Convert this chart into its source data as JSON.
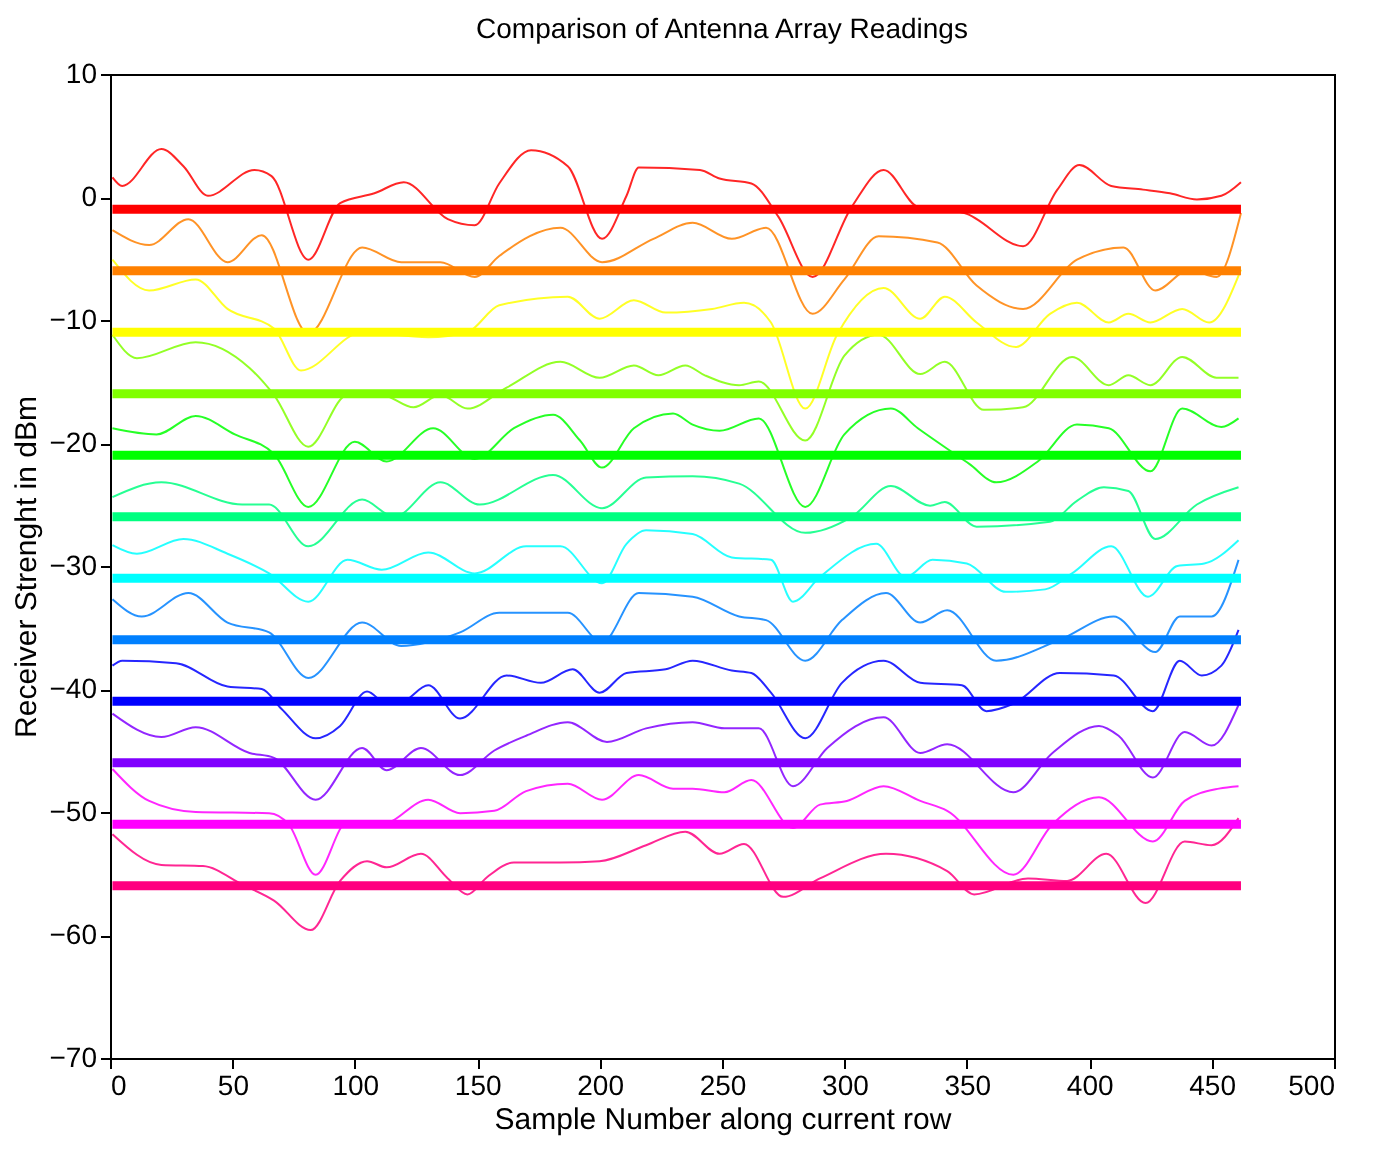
{
  "chart_data": {
    "type": "line",
    "title": "Comparison of Antenna Array Readings",
    "xlabel": "Sample Number along current row",
    "ylabel": "Receiver Strenght in dBm",
    "xlim": [
      0,
      500
    ],
    "xticks": [
      0,
      50,
      100,
      150,
      200,
      250,
      300,
      350,
      400,
      450,
      500
    ],
    "ylim": [
      -70,
      10
    ],
    "yticks": [
      -70,
      -60,
      -50,
      -40,
      -30,
      -20,
      -10,
      0,
      10
    ],
    "grid": false,
    "series": [
      {
        "color": "#ff0000",
        "x": [
          1,
          5,
          21,
          30,
          40,
          59,
          66,
          81,
          94,
          108,
          120,
          138,
          149,
          159,
          172,
          187,
          201,
          211,
          216,
          241,
          249,
          262,
          273,
          287,
          303,
          316,
          330,
          349,
          373,
          387,
          396,
          409,
          422,
          433,
          444,
          454,
          462
        ],
        "values": [
          1.6,
          0.9,
          3.9,
          2.5,
          0.1,
          2.2,
          1.7,
          -5.1,
          -0.5,
          0.3,
          1.2,
          -1.8,
          -2.3,
          1.1,
          3.8,
          2.5,
          -3.4,
          0.1,
          2.4,
          2.2,
          1.5,
          1.1,
          -1.6,
          -6.5,
          -0.8,
          2.2,
          -0.8,
          -1.3,
          -4.0,
          0.6,
          2.6,
          0.9,
          0.6,
          0.3,
          -0.2,
          0.1,
          1.2
        ]
      },
      {
        "color": "#ff8000",
        "x": [
          1,
          16,
          32,
          48,
          62,
          81,
          103,
          119,
          135,
          149,
          159,
          184,
          201,
          222,
          238,
          254,
          268,
          287,
          300,
          314,
          338,
          354,
          373,
          395,
          414,
          427,
          441,
          452,
          462
        ],
        "values": [
          -2.7,
          -3.9,
          -1.8,
          -5.3,
          -3.1,
          -11.1,
          -4.1,
          -5.3,
          -5.3,
          -6.5,
          -4.8,
          -2.5,
          -5.3,
          -3.4,
          -2.1,
          -3.4,
          -2.5,
          -9.5,
          -6.7,
          -3.2,
          -3.7,
          -7.2,
          -9.1,
          -5.1,
          -4.1,
          -7.6,
          -5.9,
          -6.5,
          -1.3
        ]
      },
      {
        "color": "#ffff00",
        "x": [
          1,
          16,
          35,
          48,
          67,
          78,
          103,
          130,
          146,
          159,
          187,
          200,
          214,
          227,
          246,
          259,
          270,
          284,
          297,
          316,
          331,
          341,
          354,
          370,
          384,
          395,
          408,
          416,
          425,
          438,
          449,
          462
        ],
        "values": [
          -5.1,
          -7.6,
          -6.7,
          -9.1,
          -10.7,
          -14.1,
          -11.0,
          -11.4,
          -11.0,
          -8.8,
          -8.1,
          -9.9,
          -8.4,
          -9.4,
          -9.1,
          -8.6,
          -10.2,
          -17.2,
          -11.2,
          -7.4,
          -9.9,
          -8.1,
          -10.2,
          -12.2,
          -9.5,
          -8.6,
          -10.2,
          -9.5,
          -10.2,
          -9.1,
          -10.2,
          -5.9
        ]
      },
      {
        "color": "#80ff00",
        "x": [
          1,
          11,
          35,
          57,
          67,
          81,
          97,
          111,
          124,
          135,
          146,
          162,
          184,
          200,
          214,
          224,
          235,
          243,
          257,
          265,
          284,
          300,
          314,
          331,
          341,
          357,
          373,
          393,
          408,
          416,
          425,
          438,
          452,
          461
        ],
        "values": [
          -11.2,
          -13.1,
          -11.8,
          -13.9,
          -16.1,
          -20.3,
          -16.1,
          -16.1,
          -17.1,
          -16.1,
          -17.2,
          -15.5,
          -13.4,
          -14.7,
          -13.7,
          -14.5,
          -13.7,
          -14.5,
          -15.3,
          -15.0,
          -19.8,
          -12.9,
          -11.2,
          -14.4,
          -13.4,
          -17.3,
          -17.1,
          -13.0,
          -15.3,
          -14.5,
          -15.3,
          -13.0,
          -14.7,
          -14.7
        ]
      },
      {
        "color": "#00ff00",
        "x": [
          1,
          19,
          35,
          51,
          67,
          81,
          100,
          113,
          132,
          149,
          165,
          181,
          192,
          201,
          214,
          230,
          238,
          249,
          265,
          284,
          300,
          319,
          330,
          351,
          362,
          379,
          395,
          408,
          425,
          438,
          454,
          461
        ],
        "values": [
          -18.8,
          -19.3,
          -17.8,
          -19.3,
          -20.9,
          -25.2,
          -19.9,
          -21.5,
          -18.8,
          -21.3,
          -18.8,
          -17.7,
          -19.8,
          -22.0,
          -18.8,
          -17.6,
          -18.5,
          -19.0,
          -18.0,
          -25.2,
          -19.3,
          -17.2,
          -18.8,
          -21.7,
          -23.2,
          -21.5,
          -18.5,
          -18.8,
          -22.3,
          -17.2,
          -18.7,
          -18.0
        ]
      },
      {
        "color": "#00ff80",
        "x": [
          1,
          21,
          54,
          65,
          81,
          103,
          116,
          135,
          151,
          181,
          201,
          219,
          238,
          257,
          284,
          303,
          319,
          335,
          341,
          354,
          384,
          395,
          406,
          416,
          427,
          444,
          461
        ],
        "values": [
          -24.4,
          -23.2,
          -25.0,
          -25.0,
          -28.4,
          -24.6,
          -26.0,
          -23.2,
          -25.0,
          -22.6,
          -25.3,
          -22.8,
          -22.7,
          -23.3,
          -27.3,
          -26.0,
          -23.5,
          -25.1,
          -24.8,
          -26.8,
          -26.4,
          -24.7,
          -23.6,
          -23.9,
          -27.8,
          -25.0,
          -23.6
        ]
      },
      {
        "color": "#00ffff",
        "x": [
          1,
          11,
          30,
          48,
          65,
          81,
          97,
          111,
          130,
          149,
          170,
          184,
          201,
          211,
          219,
          238,
          254,
          270,
          279,
          290,
          313,
          325,
          336,
          350,
          366,
          382,
          393,
          409,
          424,
          436,
          447,
          461
        ],
        "values": [
          -28.3,
          -29.0,
          -27.8,
          -29.0,
          -30.6,
          -32.9,
          -29.5,
          -30.3,
          -28.9,
          -30.6,
          -28.4,
          -28.4,
          -31.4,
          -28.2,
          -27.1,
          -27.4,
          -29.3,
          -29.5,
          -32.9,
          -30.9,
          -28.2,
          -30.9,
          -29.5,
          -29.8,
          -32.1,
          -31.9,
          -30.6,
          -28.4,
          -32.5,
          -30.0,
          -29.8,
          -27.9
        ]
      },
      {
        "color": "#0080ff",
        "x": [
          1,
          13,
          32,
          48,
          65,
          81,
          103,
          119,
          130,
          143,
          159,
          187,
          201,
          216,
          238,
          257,
          268,
          284,
          299,
          317,
          331,
          342,
          362,
          388,
          410,
          427,
          437,
          450,
          461
        ],
        "values": [
          -32.7,
          -34.1,
          -32.2,
          -34.6,
          -35.4,
          -39.1,
          -34.6,
          -36.5,
          -36.2,
          -35.4,
          -33.8,
          -33.8,
          -36.2,
          -32.2,
          -32.5,
          -34.1,
          -34.4,
          -37.7,
          -34.4,
          -32.2,
          -34.6,
          -33.6,
          -37.7,
          -36.0,
          -34.1,
          -37.0,
          -34.1,
          -34.1,
          -29.5
        ]
      },
      {
        "color": "#0000ff",
        "x": [
          1,
          5,
          27,
          48,
          62,
          70,
          84,
          94,
          105,
          113,
          119,
          130,
          143,
          162,
          176,
          189,
          200,
          211,
          227,
          238,
          254,
          262,
          270,
          284,
          299,
          316,
          331,
          348,
          358,
          369,
          388,
          410,
          426,
          437,
          446,
          454,
          461
        ],
        "values": [
          -38.1,
          -37.7,
          -37.9,
          -39.8,
          -40.0,
          -41.6,
          -44.0,
          -43.0,
          -40.2,
          -41.2,
          -41.1,
          -39.7,
          -42.4,
          -38.9,
          -39.5,
          -38.4,
          -40.3,
          -38.7,
          -38.4,
          -37.7,
          -38.5,
          -38.7,
          -40.3,
          -44.0,
          -39.5,
          -37.7,
          -39.5,
          -39.7,
          -41.8,
          -41.2,
          -38.7,
          -38.9,
          -41.8,
          -37.7,
          -38.9,
          -38.1,
          -35.2
        ]
      },
      {
        "color": "#8000ff",
        "x": [
          1,
          21,
          35,
          57,
          67,
          84,
          103,
          113,
          127,
          143,
          157,
          170,
          187,
          203,
          219,
          238,
          251,
          265,
          279,
          293,
          316,
          331,
          342,
          369,
          385,
          404,
          412,
          426,
          439,
          450,
          461
        ],
        "values": [
          -42.0,
          -43.9,
          -43.1,
          -45.2,
          -45.6,
          -49.0,
          -44.8,
          -46.6,
          -44.8,
          -47.0,
          -45.0,
          -43.8,
          -42.7,
          -44.3,
          -43.2,
          -42.7,
          -43.2,
          -43.2,
          -47.9,
          -44.8,
          -42.3,
          -45.2,
          -44.5,
          -48.4,
          -45.2,
          -43.0,
          -43.8,
          -47.2,
          -43.5,
          -44.6,
          -41.3
        ]
      },
      {
        "color": "#ff00ff",
        "x": [
          1,
          16,
          35,
          65,
          73,
          84,
          97,
          111,
          130,
          143,
          157,
          170,
          187,
          201,
          216,
          230,
          238,
          251,
          262,
          279,
          290,
          301,
          316,
          331,
          342,
          369,
          385,
          404,
          426,
          439,
          453,
          461
        ],
        "values": [
          -46.5,
          -49.1,
          -50.0,
          -50.1,
          -51.0,
          -55.1,
          -50.8,
          -51.0,
          -49.0,
          -50.1,
          -49.9,
          -48.3,
          -47.7,
          -49.0,
          -47.0,
          -48.1,
          -48.1,
          -48.4,
          -47.4,
          -51.3,
          -49.4,
          -49.1,
          -47.9,
          -49.1,
          -49.9,
          -55.1,
          -51.0,
          -48.8,
          -52.4,
          -49.1,
          -48.1,
          -47.9
        ]
      },
      {
        "color": "#ff0080",
        "x": [
          1,
          21,
          38,
          54,
          67,
          82,
          94,
          105,
          113,
          127,
          138,
          146,
          154,
          165,
          184,
          200,
          219,
          235,
          249,
          259,
          275,
          290,
          317,
          342,
          353,
          375,
          391,
          407,
          423,
          439,
          450,
          461
        ],
        "values": [
          -51.8,
          -54.3,
          -54.4,
          -55.9,
          -57.2,
          -59.6,
          -55.6,
          -54.0,
          -54.5,
          -53.4,
          -55.4,
          -56.7,
          -55.3,
          -54.1,
          -54.1,
          -54.0,
          -52.7,
          -51.6,
          -53.4,
          -52.6,
          -56.9,
          -55.4,
          -53.4,
          -54.8,
          -56.7,
          -55.4,
          -55.6,
          -53.4,
          -57.4,
          -52.4,
          -52.7,
          -50.5
        ]
      }
    ],
    "ref_lines": [
      {
        "axis": "y",
        "value": -1,
        "color": "#ff0000"
      },
      {
        "axis": "y",
        "value": -6,
        "color": "#ff8000"
      },
      {
        "axis": "y",
        "value": -11,
        "color": "#ffff00"
      },
      {
        "axis": "y",
        "value": -16,
        "color": "#80ff00"
      },
      {
        "axis": "y",
        "value": -21,
        "color": "#00ff00"
      },
      {
        "axis": "y",
        "value": -26,
        "color": "#00ff80"
      },
      {
        "axis": "y",
        "value": -31,
        "color": "#00ffff"
      },
      {
        "axis": "y",
        "value": -36,
        "color": "#0080ff"
      },
      {
        "axis": "y",
        "value": -41,
        "color": "#0000ff"
      },
      {
        "axis": "y",
        "value": -46,
        "color": "#8000ff"
      },
      {
        "axis": "y",
        "value": -51,
        "color": "#ff00ff"
      },
      {
        "axis": "y",
        "value": -56,
        "color": "#ff0080"
      }
    ]
  }
}
